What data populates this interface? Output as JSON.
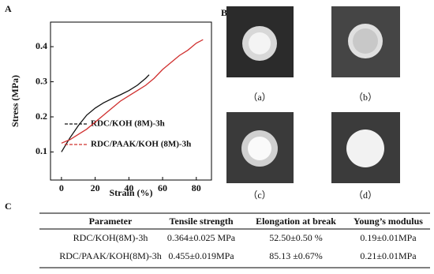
{
  "panels": {
    "a": "A",
    "b": "B",
    "c": "C"
  },
  "chart_data": {
    "type": "line",
    "xlabel": "Strain (%)",
    "ylabel": "Stress (MPa)",
    "xlim": [
      -6.5,
      89
    ],
    "xticks": [
      0,
      20,
      40,
      60,
      80
    ],
    "ylim": [
      0.02,
      0.47
    ],
    "yticks": [
      0.1,
      0.2,
      0.3,
      0.4
    ],
    "series": [
      {
        "name": "RDC/KOH (8M)-3h",
        "color": "#111111",
        "x": [
          0,
          5,
          10,
          15,
          20,
          25,
          30,
          35,
          40,
          45,
          50,
          52
        ],
        "values": [
          0.1,
          0.14,
          0.175,
          0.205,
          0.225,
          0.24,
          0.252,
          0.263,
          0.275,
          0.29,
          0.31,
          0.32
        ]
      },
      {
        "name": "RDC/PAAK/KOH (8M)-3h",
        "color": "#d0302f",
        "x": [
          0,
          5,
          10,
          15,
          20,
          25,
          30,
          35,
          40,
          45,
          50,
          55,
          60,
          65,
          70,
          75,
          80,
          84
        ],
        "values": [
          0.125,
          0.135,
          0.15,
          0.165,
          0.185,
          0.205,
          0.225,
          0.245,
          0.26,
          0.275,
          0.29,
          0.31,
          0.335,
          0.355,
          0.375,
          0.39,
          0.41,
          0.42
        ]
      }
    ]
  },
  "photos": [
    "（a）",
    "（b）",
    "（c）",
    "（d）"
  ],
  "table": {
    "header": [
      "Parameter",
      "Tensile strength",
      "Elongation at break",
      "Young’s modulus"
    ],
    "rows": [
      [
        "RDC/KOH(8M)-3h",
        "0.364±0.025 MPa",
        "52.50±0.50 %",
        "0.19±0.01MPa"
      ],
      [
        "RDC/PAAK/KOH(8M)-3h",
        "0.455±0.019MPa",
        "85.13 ±0.67%",
        "0.21±0.01MPa"
      ]
    ]
  }
}
